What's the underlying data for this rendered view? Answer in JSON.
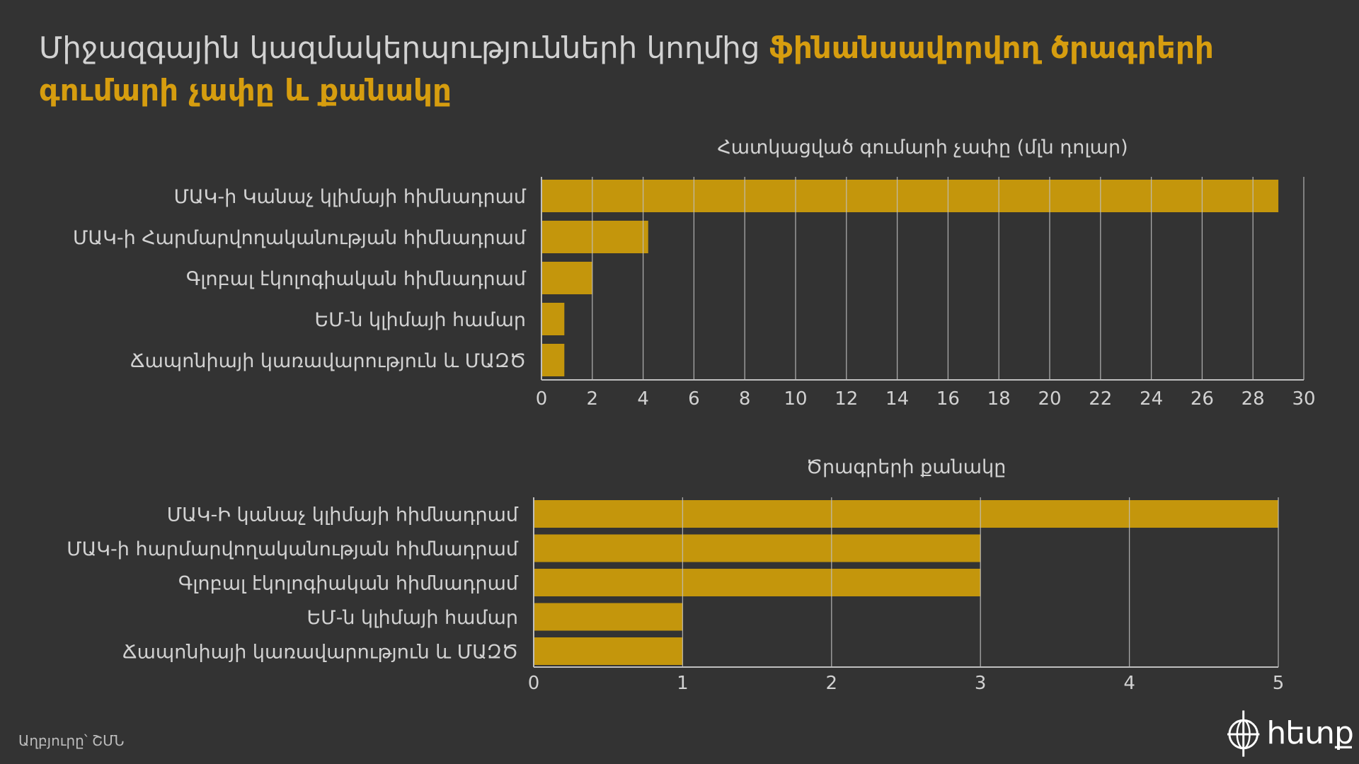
{
  "title": {
    "part1": "Միջազգային կազմակերպությունների կողմից ",
    "part2": "ֆինանսավորվող ծրագրերի գումարի չափը և քանակը"
  },
  "colors": {
    "background": "#333333",
    "bar": "#c4960c",
    "title_accent": "#d69d0f",
    "text": "#d2d2d2",
    "grid": "#bfbfbf"
  },
  "chart_data": [
    {
      "type": "bar",
      "orientation": "horizontal",
      "title": "Հատկացված գումարի չափը (մլն դոլար)",
      "categories": [
        "ՄԱԿ-ի Կանաչ կլիմայի հիմնադրամ",
        "ՄԱԿ-ի Հարմարվողականության հիմնադրամ",
        "Գլոբալ էկոլոգիական հիմնադրամ",
        "ԵՄ-ն կլիմայի համար",
        "Ճապոնիայի կառավարություն և ՄԱԶԾ"
      ],
      "values": [
        29,
        4.2,
        2,
        0.9,
        0.9
      ],
      "xlim": [
        0,
        30
      ],
      "xticks": [
        0,
        2,
        4,
        6,
        8,
        10,
        12,
        14,
        16,
        18,
        20,
        22,
        24,
        26,
        28,
        30
      ],
      "grid": true
    },
    {
      "type": "bar",
      "orientation": "horizontal",
      "title": "Ծրագրերի քանակը",
      "categories": [
        "ՄԱԿ-Ի կանաչ կլիմայի հիմնադրամ",
        "ՄԱԿ-ի հարմարվողականության հիմնադրամ",
        "Գլոբալ էկոլոգիական հիմնադրամ",
        "ԵՄ-ն կլիմայի համար",
        "Ճապոնիայի կառավարություն և ՄԱԶԾ"
      ],
      "values": [
        5,
        3,
        3,
        1,
        1
      ],
      "xlim": [
        0,
        5
      ],
      "xticks": [
        0,
        1,
        2,
        3,
        4,
        5
      ],
      "grid": true
    }
  ],
  "source": "Աղբյուրը՝ ՇՄՆ",
  "logo": {
    "text": "hետք",
    "icon": "globe-crosshair-icon"
  }
}
